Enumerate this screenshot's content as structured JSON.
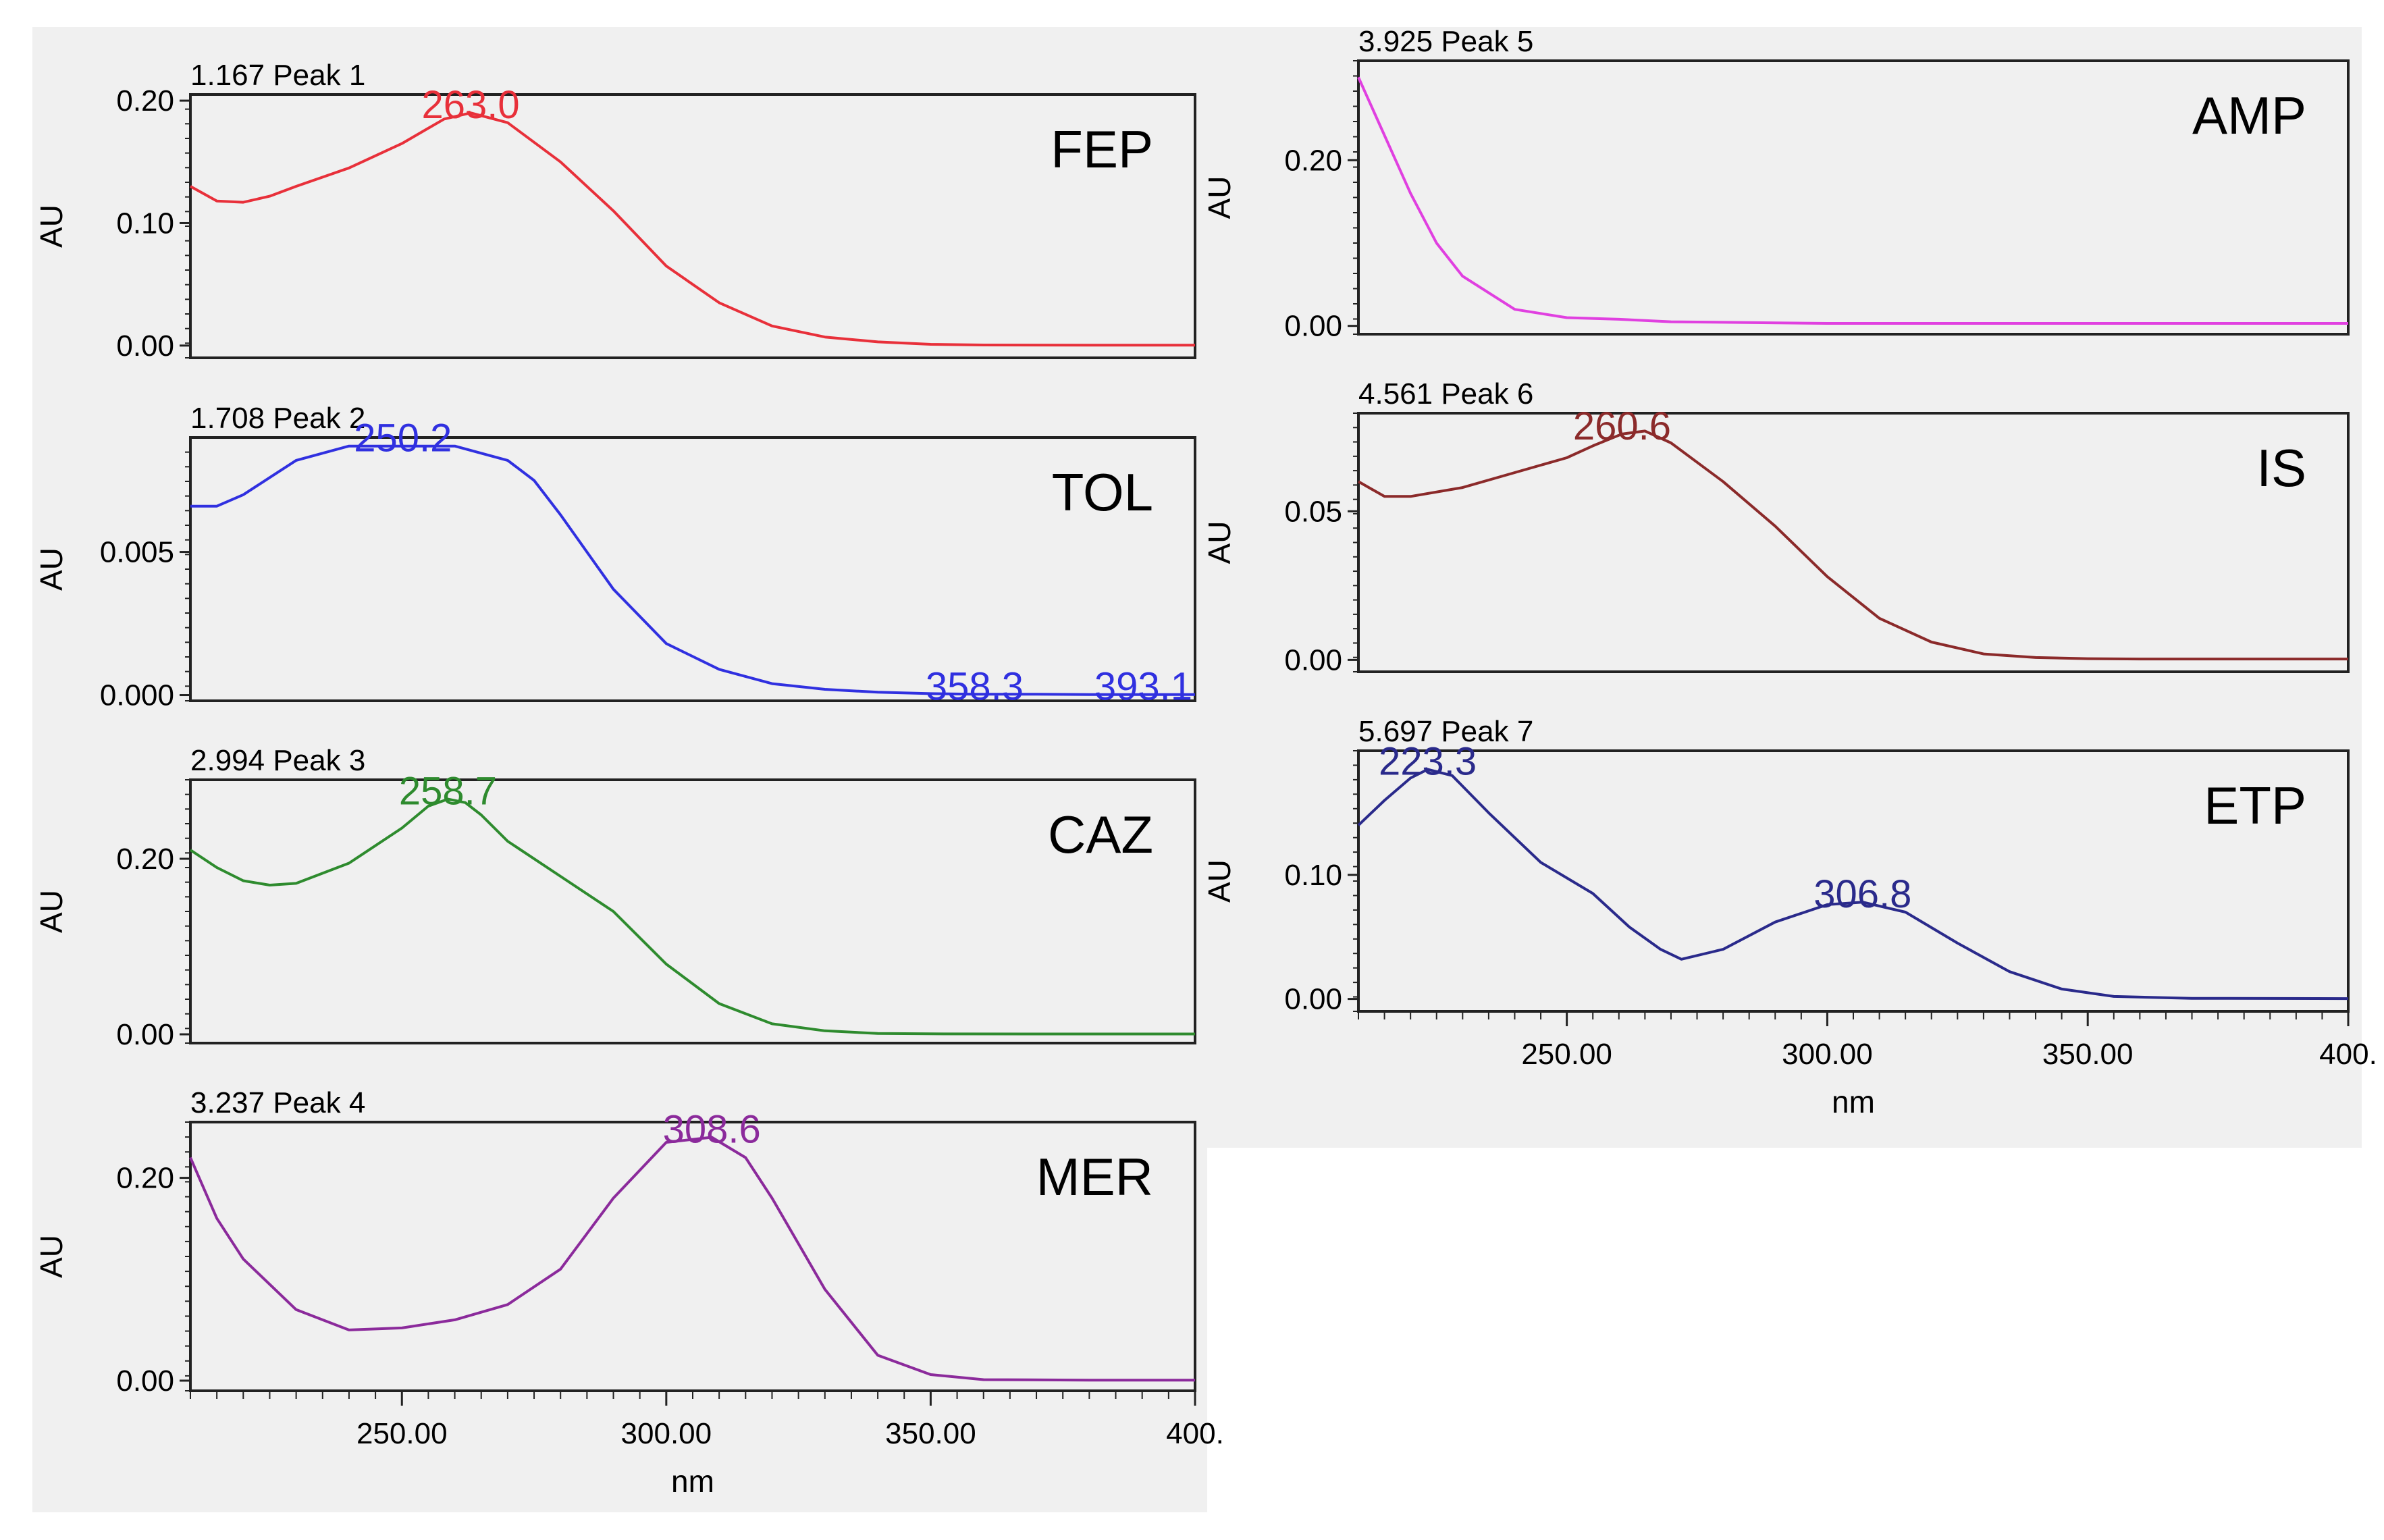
{
  "chart_data": [
    {
      "type": "line",
      "peak_title": "1.167 Peak 1",
      "drug": "FEP",
      "color": "#e8303a",
      "ylabel": "AU",
      "ylim": [
        -0.01,
        0.205
      ],
      "yticks": [
        "0.20",
        "0.10",
        "0.00"
      ],
      "ytick_values": [
        0.2,
        0.1,
        0.0
      ],
      "x": [
        210,
        215,
        220,
        225,
        230,
        240,
        250,
        258,
        263,
        270,
        280,
        290,
        300,
        310,
        320,
        330,
        340,
        350,
        360,
        380,
        400
      ],
      "y": [
        0.13,
        0.118,
        0.117,
        0.122,
        0.13,
        0.145,
        0.165,
        0.185,
        0.19,
        0.182,
        0.15,
        0.11,
        0.065,
        0.035,
        0.016,
        0.007,
        0.003,
        0.001,
        0.0005,
        0.0003,
        0.0003
      ],
      "peak_labels": [
        {
          "text": "263.0",
          "x": 263,
          "y": 0.19
        }
      ]
    },
    {
      "type": "line",
      "peak_title": "1.708 Peak 2",
      "drug": "TOL",
      "color": "#3030e0",
      "ylabel": "AU",
      "ylim": [
        -0.0002,
        0.009
      ],
      "yticks": [
        "0.005",
        "0.000"
      ],
      "ytick_values": [
        0.005,
        0.0
      ],
      "x": [
        210,
        215,
        220,
        225,
        230,
        240,
        250,
        260,
        270,
        275,
        280,
        290,
        300,
        310,
        320,
        330,
        340,
        350,
        358.3,
        370,
        380,
        393.1,
        400
      ],
      "y": [
        0.0066,
        0.0066,
        0.007,
        0.0076,
        0.0082,
        0.0087,
        0.0087,
        0.0087,
        0.0082,
        0.0075,
        0.0063,
        0.0037,
        0.0018,
        0.0009,
        0.0004,
        0.0002,
        0.0001,
        5e-05,
        3e-05,
        3e-05,
        2e-05,
        2e-05,
        2e-05
      ],
      "peak_labels": [
        {
          "text": "250.2",
          "x": 250.2,
          "y": 0.0087
        },
        {
          "text": "358.3",
          "x": 358.3,
          "y": 3e-05
        },
        {
          "text": "393.1",
          "x": 393.1,
          "y": 2e-05
        }
      ]
    },
    {
      "type": "line",
      "peak_title": "2.994 Peak 3",
      "drug": "CAZ",
      "color": "#2e8b2e",
      "ylabel": "AU",
      "ylim": [
        -0.01,
        0.29
      ],
      "yticks": [
        "0.20",
        "0.00"
      ],
      "ytick_values": [
        0.2,
        0.0
      ],
      "x": [
        210,
        215,
        220,
        225,
        230,
        240,
        250,
        255,
        258.7,
        262,
        265,
        270,
        280,
        290,
        300,
        310,
        320,
        330,
        340,
        350,
        370,
        400
      ],
      "y": [
        0.21,
        0.19,
        0.175,
        0.17,
        0.172,
        0.195,
        0.235,
        0.26,
        0.268,
        0.264,
        0.25,
        0.22,
        0.18,
        0.14,
        0.08,
        0.035,
        0.012,
        0.004,
        0.001,
        0.0005,
        0.0004,
        0.0004
      ],
      "peak_labels": [
        {
          "text": "258.7",
          "x": 258.7,
          "y": 0.268
        }
      ]
    },
    {
      "type": "line",
      "peak_title": "3.237 Peak 4",
      "drug": "MER",
      "color": "#8b2a9b",
      "ylabel": "AU",
      "ylim": [
        -0.01,
        0.255
      ],
      "yticks": [
        "0.20",
        "0.00"
      ],
      "ytick_values": [
        0.2,
        0.0
      ],
      "x": [
        210,
        215,
        220,
        230,
        240,
        250,
        260,
        270,
        280,
        290,
        300,
        308.6,
        315,
        320,
        330,
        340,
        350,
        360,
        380,
        400
      ],
      "y": [
        0.22,
        0.16,
        0.12,
        0.07,
        0.05,
        0.052,
        0.06,
        0.075,
        0.11,
        0.18,
        0.235,
        0.24,
        0.22,
        0.18,
        0.09,
        0.025,
        0.006,
        0.001,
        0.0005,
        0.0005
      ],
      "peak_labels": [
        {
          "text": "308.6",
          "x": 308.6,
          "y": 0.24
        }
      ]
    },
    {
      "type": "line",
      "peak_title": "3.925 Peak 5",
      "drug": "AMP",
      "color": "#e040e0",
      "ylabel": "AU",
      "ylim": [
        -0.01,
        0.32
      ],
      "yticks": [
        "0.20",
        "0.00"
      ],
      "ytick_values": [
        0.2,
        0.0
      ],
      "x": [
        210,
        215,
        220,
        225,
        230,
        240,
        250,
        260,
        270,
        300,
        350,
        400
      ],
      "y": [
        0.3,
        0.23,
        0.16,
        0.1,
        0.06,
        0.02,
        0.01,
        0.008,
        0.005,
        0.003,
        0.003,
        0.003
      ],
      "peak_labels": []
    },
    {
      "type": "line",
      "peak_title": "4.561 Peak 6",
      "drug": "IS",
      "color": "#8b2a2a",
      "ylabel": "AU",
      "ylim": [
        -0.004,
        0.083
      ],
      "yticks": [
        "0.05",
        "0.00"
      ],
      "ytick_values": [
        0.05,
        0.0
      ],
      "x": [
        210,
        215,
        220,
        230,
        240,
        250,
        255,
        260.6,
        265,
        270,
        280,
        290,
        300,
        310,
        320,
        330,
        340,
        350,
        360,
        380,
        400
      ],
      "y": [
        0.06,
        0.055,
        0.055,
        0.058,
        0.063,
        0.068,
        0.072,
        0.076,
        0.077,
        0.073,
        0.06,
        0.045,
        0.028,
        0.014,
        0.006,
        0.002,
        0.0008,
        0.0004,
        0.0003,
        0.0003,
        0.0003
      ],
      "peak_labels": [
        {
          "text": "260.6",
          "x": 260.6,
          "y": 0.076
        }
      ]
    },
    {
      "type": "line",
      "peak_title": "5.697 Peak 7",
      "drug": "ETP",
      "color": "#2a2a8b",
      "ylabel": "AU",
      "ylim": [
        -0.01,
        0.2
      ],
      "yticks": [
        "0.10",
        "0.00"
      ],
      "ytick_values": [
        0.1,
        0.0
      ],
      "x": [
        210,
        215,
        220,
        223.3,
        228,
        235,
        245,
        255,
        262,
        268,
        272,
        280,
        290,
        300,
        306.8,
        315,
        325,
        335,
        345,
        355,
        370,
        400
      ],
      "y": [
        0.14,
        0.16,
        0.178,
        0.185,
        0.18,
        0.15,
        0.11,
        0.085,
        0.058,
        0.04,
        0.032,
        0.04,
        0.062,
        0.076,
        0.078,
        0.07,
        0.045,
        0.022,
        0.008,
        0.002,
        0.0005,
        0.0003
      ],
      "peak_labels": [
        {
          "text": "223.3",
          "x": 223.3,
          "y": 0.185
        },
        {
          "text": "306.8",
          "x": 306.8,
          "y": 0.078
        }
      ]
    }
  ],
  "x_axis": {
    "xlabel": "nm",
    "xlim": [
      210,
      400
    ],
    "ticks": [
      "250.00",
      "300.00",
      "350.00",
      "400."
    ],
    "tick_values": [
      250,
      300,
      350,
      400
    ]
  }
}
